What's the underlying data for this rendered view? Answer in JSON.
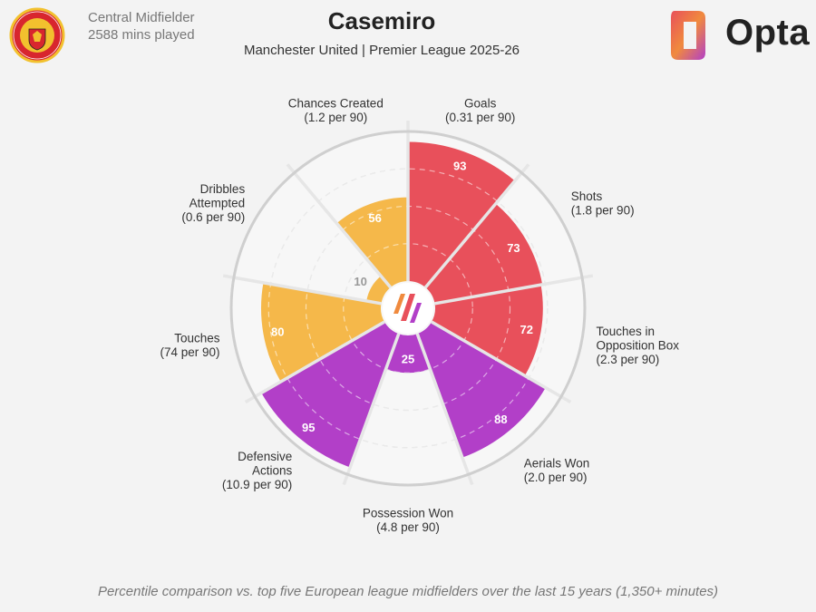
{
  "header": {
    "position": "Central Midfielder",
    "minutes": "2588 mins played",
    "player_name": "Casemiro",
    "subtitle": "Manchester United | Premier League 2025-26",
    "brand": "Opta"
  },
  "footnote": "Percentile comparison vs. top five European league midfielders over the last 15 years (1,350+ minutes)",
  "colors": {
    "attacking": "#e8505b",
    "possession": "#f5b84a",
    "defending": "#b23fc8",
    "grid": "#d0d0d0",
    "background": "#f3f3f3"
  },
  "chart_data": {
    "type": "polar-bar",
    "title": "Casemiro",
    "subtitle": "Manchester United | Premier League 2025-26",
    "rlim": [
      0,
      100
    ],
    "categories": [
      {
        "label": [
          "Goals",
          "(0.31 per 90)"
        ],
        "value": 93,
        "group": "attacking"
      },
      {
        "label": [
          "Shots",
          "(1.8 per 90)"
        ],
        "value": 73,
        "group": "attacking"
      },
      {
        "label": [
          "Touches in",
          "Opposition Box",
          "(2.3 per 90)"
        ],
        "value": 72,
        "group": "attacking"
      },
      {
        "label": [
          "Aerials Won",
          "(2.0 per 90)"
        ],
        "value": 88,
        "group": "defending"
      },
      {
        "label": [
          "Possession Won",
          "(4.8 per 90)"
        ],
        "value": 25,
        "group": "defending"
      },
      {
        "label": [
          "Defensive",
          "Actions",
          "(10.9 per 90)"
        ],
        "value": 95,
        "group": "defending"
      },
      {
        "label": [
          "Touches",
          "(74 per 90)"
        ],
        "value": 80,
        "group": "possession"
      },
      {
        "label": [
          "Dribbles",
          "Attempted",
          "(0.6 per 90)"
        ],
        "value": 10,
        "group": "possession"
      },
      {
        "label": [
          "Chances Created",
          "(1.2 per 90)"
        ],
        "value": 56,
        "group": "possession"
      }
    ],
    "value_labels": [
      "93",
      "73",
      "72",
      "88",
      "25",
      "95",
      "80",
      "10",
      "56"
    ]
  }
}
